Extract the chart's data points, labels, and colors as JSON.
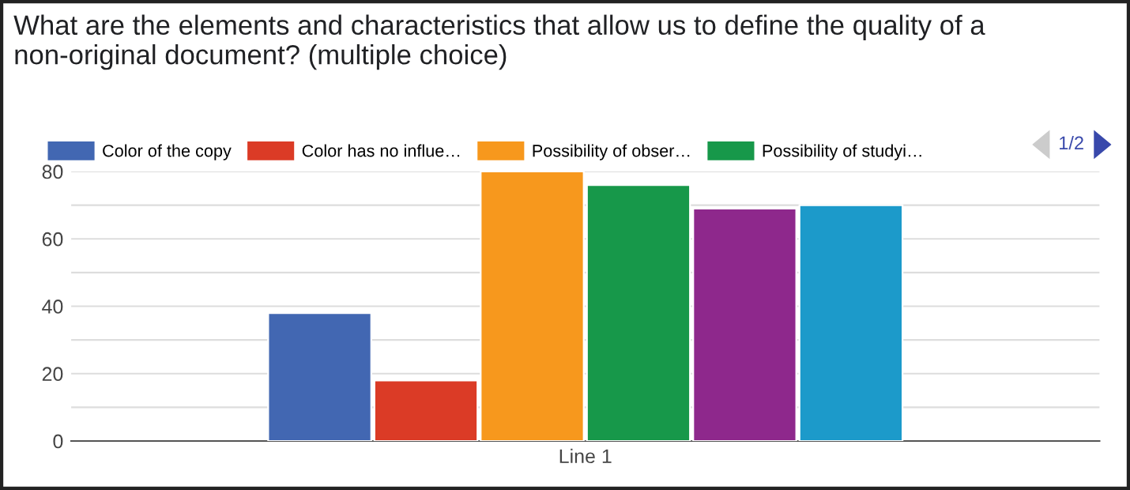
{
  "chart_data": {
    "type": "bar",
    "title": "What are the elements and characteristics that allow us to define the quality of a non-original document? (multiple choice)",
    "categories": [
      "Line 1"
    ],
    "series": [
      {
        "name": "Color of the copy",
        "color": "#4267b2",
        "values": [
          38
        ]
      },
      {
        "name": "Color has no influe…",
        "color": "#db3b26",
        "values": [
          18
        ]
      },
      {
        "name": "Possibility of obser…",
        "color": "#f7981d",
        "values": [
          80
        ]
      },
      {
        "name": "Possibility of studyi…",
        "color": "#17984a",
        "values": [
          76
        ]
      },
      {
        "color": "#8e288c",
        "values": [
          69
        ]
      },
      {
        "color": "#1c9aca",
        "values": [
          70
        ]
      }
    ],
    "ylim": [
      0,
      80
    ],
    "yticks": [
      0,
      {
        "value": 10,
        "label": null
      },
      20,
      {
        "value": 30,
        "label": null
      },
      40,
      {
        "value": 50,
        "label": null
      },
      60,
      {
        "value": 70,
        "label": null
      },
      80
    ],
    "grid": "y",
    "legend": "top",
    "annotations": [
      "1/2"
    ]
  }
}
